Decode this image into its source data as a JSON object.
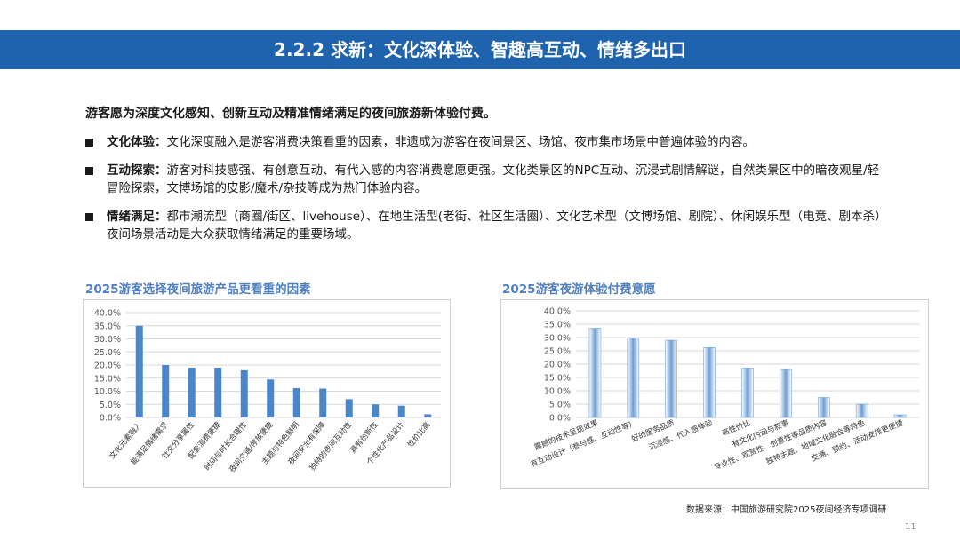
{
  "header": {
    "title": "2.2.2 求新：文化深体验、智趣高互动、情绪多出口"
  },
  "lead": "游客愿为深度文化感知、创新互动及精准情绪满足的夜间旅游新体验付费。",
  "bullets": [
    {
      "label": "文化体验：",
      "text": "文化深度融入是游客消费决策看重的因素，非遗成为游客在夜间景区、场馆、夜市集市场景中普遍体验的内容。"
    },
    {
      "label": "互动探索：",
      "text": "游客对科技感强、有创意互动、有代入感的内容消费意愿更强。文化类景区的NPC互动、沉浸式剧情解谜，自然类景区中的暗夜观星/轻冒险探索，文博场馆的皮影/魔术/杂技等成为热门体验内容。"
    },
    {
      "label": "情绪满足：",
      "text": "都市潮流型（商圈/街区、livehouse）、在地生活型(老街、社区生活圈）、文化艺术型（文博场馆、剧院）、休闲娱乐型（电竞、剧本杀）夜间场景活动是大众获取情绪满足的重要场域。"
    }
  ],
  "chart_data": [
    {
      "type": "bar",
      "title": "2025游客选择夜间旅游产品更看重的因素",
      "categories": [
        "文化元素融入",
        "能满足情绪需求",
        "社交分享属性",
        "配套消费便捷",
        "时间与时长合理性",
        "夜间交通/停放便捷",
        "主题与特色鲜明",
        "夜间安全有保障",
        "独特的夜间互动性",
        "具有创新性",
        "个性化产品设计",
        "性价比高"
      ],
      "values": [
        35.0,
        20.0,
        19.0,
        19.0,
        18.0,
        14.5,
        11.2,
        11.0,
        7.0,
        5.0,
        4.5,
        1.2
      ],
      "ylim": [
        0,
        40
      ],
      "yticks": [
        "0.0%",
        "5.0%",
        "10.0%",
        "15.0%",
        "20.0%",
        "25.0%",
        "30.0%",
        "35.0%",
        "40.0%"
      ],
      "bar_color": "#4a86c8",
      "grid": true
    },
    {
      "type": "bar",
      "title": "2025游客夜游体验付费意愿",
      "categories": [
        "震撼的技术呈现效果",
        "有互动设计（参与感、互动性等）",
        "好的服务品质",
        "沉浸感、代入感体验",
        "高性价比",
        "有文化内涵与叙事",
        "专业性、观赏性、创意性等品质内容",
        "独特主题、地域文化融合等特色",
        "交通、预约、活动安排更便捷"
      ],
      "values": [
        33.5,
        29.8,
        29.0,
        26.2,
        18.5,
        18.0,
        7.5,
        5.0,
        1.0
      ],
      "ylim": [
        0,
        40
      ],
      "yticks": [
        "0.0%",
        "5.0%",
        "10.0%",
        "15.0%",
        "20.0%",
        "25.0%",
        "30.0%",
        "35.0%",
        "40.0%"
      ],
      "bar_color": "#6f9fd4",
      "grid": true
    }
  ],
  "source": "数据来源：中国旅游研究院2025夜间经济专项调研",
  "page_number": "11"
}
